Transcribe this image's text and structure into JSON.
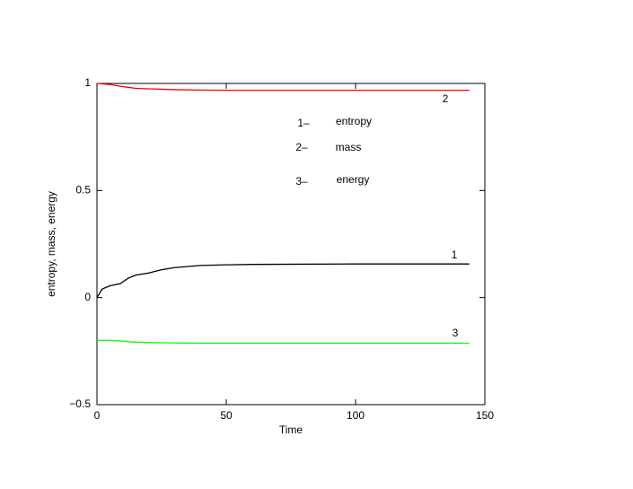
{
  "chart_data": {
    "type": "line",
    "xlabel": "Time",
    "ylabel": "entropy, mass, energy",
    "x": [
      0,
      2,
      5,
      9,
      12,
      15,
      20,
      25,
      30,
      40,
      50,
      60,
      80,
      100,
      144
    ],
    "series": [
      {
        "name": "entropy",
        "key": "1–",
        "label": "1",
        "color": "#000000",
        "values": [
          0,
          0.04,
          0.055,
          0.065,
          0.09,
          0.105,
          0.115,
          0.13,
          0.14,
          0.15,
          0.153,
          0.155,
          0.156,
          0.157,
          0.157
        ]
      },
      {
        "name": "mass",
        "key": "2–",
        "label": "2",
        "color": "#ff0000",
        "values": [
          1.0,
          0.998,
          0.995,
          0.987,
          0.982,
          0.977,
          0.975,
          0.973,
          0.971,
          0.969,
          0.968,
          0.968,
          0.968,
          0.968,
          0.968
        ]
      },
      {
        "name": "energy",
        "key": "3–",
        "label": "3",
        "color": "#00ff00",
        "values": [
          -0.2,
          -0.2,
          -0.2,
          -0.202,
          -0.206,
          -0.208,
          -0.21,
          -0.211,
          -0.212,
          -0.213,
          -0.213,
          -0.213,
          -0.213,
          -0.213,
          -0.213
        ]
      }
    ],
    "xlim": [
      0,
      150
    ],
    "xticks": [
      0,
      50,
      100,
      150
    ],
    "ylim": [
      -0.5,
      1
    ],
    "yticks": [
      {
        "value": -0.5,
        "label": "−0.5"
      },
      0,
      0.5,
      1
    ],
    "grid": false
  }
}
